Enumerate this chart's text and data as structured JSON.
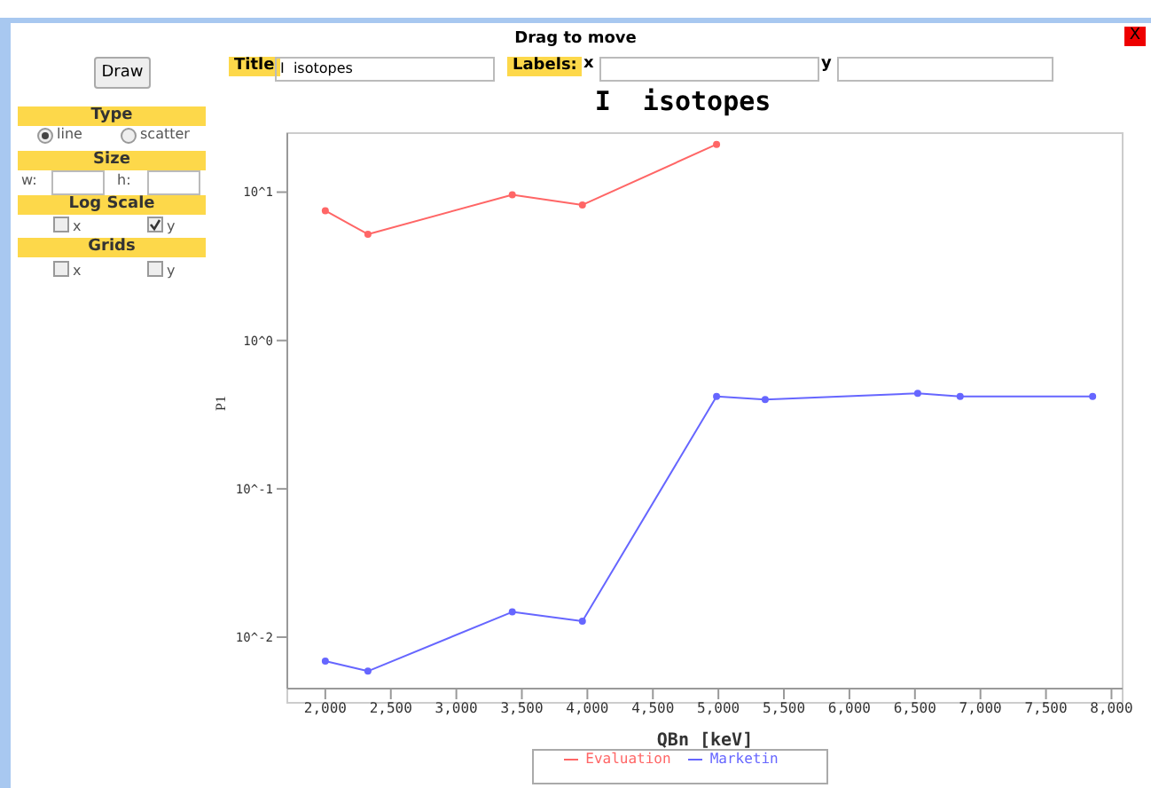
{
  "chart_data": {
    "type": "line",
    "title": "I  isotopes",
    "xlabel": "QBn [keV]",
    "ylabel": "P1",
    "annotations": [
      "Drag to move",
      "Draw",
      "Title",
      "Labels:",
      "x",
      "y",
      "Type",
      "line",
      "scatter",
      "Size",
      "w:",
      "h:",
      "Log Scale",
      "x",
      "y",
      "Grids",
      "x",
      "y",
      "X"
    ],
    "x": [
      2000,
      2325,
      3427,
      3962,
      4986,
      5357,
      6521,
      6845,
      7856
    ],
    "series": [
      {
        "name": "Evaluation",
        "color": "#ff6666",
        "x": [
          2000,
          2325,
          3427,
          3962,
          4986
        ],
        "values": [
          7.5,
          5.2,
          9.6,
          8.2,
          21
        ]
      },
      {
        "name": "Marketin",
        "color": "#6666ff",
        "values": [
          0.0069,
          0.0059,
          0.0148,
          0.0128,
          0.42,
          0.4,
          0.44,
          0.42,
          0.42
        ]
      }
    ],
    "log": "y",
    "xlim": [
      1710,
      8085
    ],
    "ylim": [
      0.0045,
      25
    ],
    "xticks": [
      {
        "value": 2000,
        "label": "2,000"
      },
      {
        "value": 2500,
        "label": "2,500"
      },
      {
        "value": 3000,
        "label": "3,000"
      },
      {
        "value": 3500,
        "label": "3,500"
      },
      {
        "value": 4000,
        "label": "4,000"
      },
      {
        "value": 4500,
        "label": "4,500"
      },
      {
        "value": 5000,
        "label": "5,000"
      },
      {
        "value": 5500,
        "label": "5,500"
      },
      {
        "value": 6000,
        "label": "6,000"
      },
      {
        "value": 6500,
        "label": "6,500"
      },
      {
        "value": 7000,
        "label": "7,000"
      },
      {
        "value": 7500,
        "label": "7,500"
      },
      {
        "value": 8000,
        "label": "8,000"
      }
    ],
    "yticks": [
      {
        "value": 0.01,
        "label": "10^-2"
      },
      {
        "value": 0.1,
        "label": "10^-1"
      },
      {
        "value": 1,
        "label": "10^0"
      },
      {
        "value": 10,
        "label": "10^1"
      }
    ],
    "legend": "bottom",
    "marker": "circle",
    "line_style": "solid"
  }
}
